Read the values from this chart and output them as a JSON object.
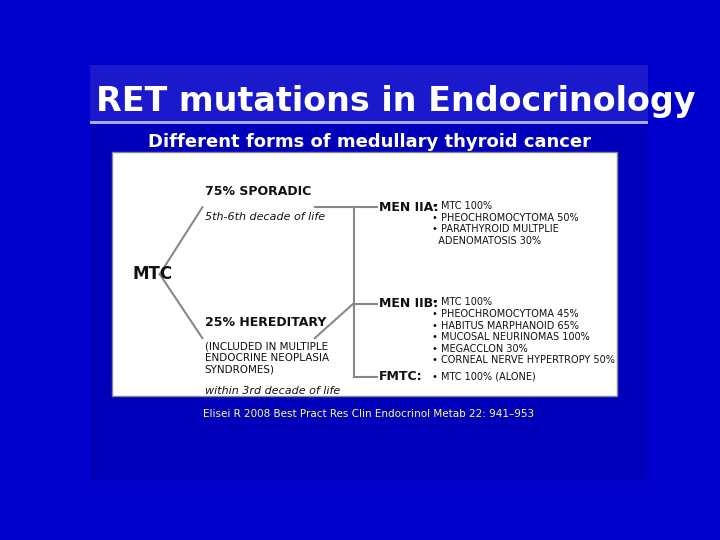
{
  "title": "RET mutations in Endocrinology",
  "subtitle": "Different forms of medullary thyroid cancer",
  "reference": "Elisei R 2008 Best Pract Res Clin Endocrinol Metab 22: 941–953",
  "title_color": "#ffffff",
  "subtitle_color": "#ffffff",
  "ref_color": "#ffff99",
  "bg_dark": "#000099",
  "bg_mid": "#0000cc",
  "title_bar_color": "#1111bb",
  "sporadic_pct": "75% SPORADIC",
  "sporadic_decade": "5th-6th decade of life",
  "hereditary_pct": "25% HEREDITARY",
  "hereditary_sub": "(INCLUDED IN MULTIPLE\nENDOCRINE NEOPLASIA\nSYNDROMES)",
  "hereditary_decade": "within 3rd decade of life",
  "mtc_label": "MTC",
  "men_iia_label": "MEN IIA:",
  "men_iia_items": "• MTC 100%\n• PHEOCHROMOCYTOMA 50%\n• PARATHYROID MULTPLIE\n  ADENOMATOSIS 30%",
  "men_iib_label": "MEN IIB:",
  "men_iib_items": "• MTC 100%\n• PHEOCHROMOCYTOMA 45%\n• HABITUS MARPHANOID 65%\n• MUCOSAL NEURINOMAS 100%\n• MEGACCLON 30%\n• CORNEAL NERVE HYPERTROPY 50%",
  "fmtc_label": "FMTC:",
  "fmtc_items": "• MTC 100% (ALONE)"
}
